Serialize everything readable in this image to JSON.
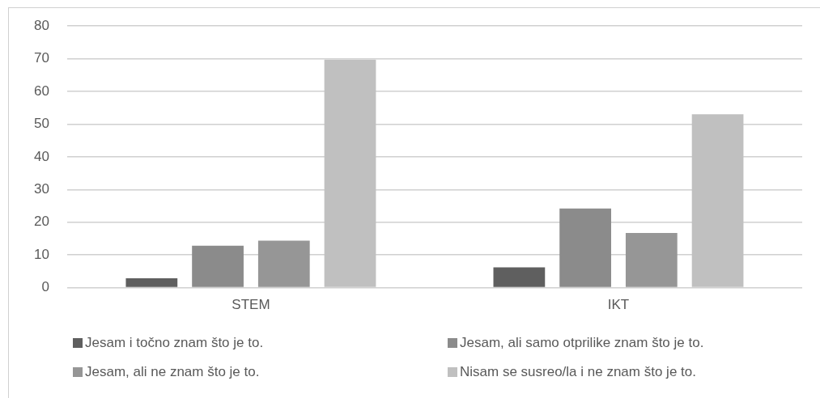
{
  "chart_data": {
    "type": "bar",
    "categories": [
      "STEM",
      "IKT"
    ],
    "series": [
      {
        "name": "Jesam i točno znam što je to.",
        "color": "#5f5f5f",
        "values": [
          2.9,
          6.2
        ]
      },
      {
        "name": "Jesam, ali samo otprilike znam što je to.",
        "color": "#8b8b8b",
        "values": [
          12.8,
          24.2
        ]
      },
      {
        "name": "Jesam, ali ne znam što je to.",
        "color": "#969696",
        "values": [
          14.4,
          16.7
        ]
      },
      {
        "name": "Nisam se susreo/la i ne znam što je to.",
        "color": "#c0c0c0",
        "values": [
          69.7,
          53
        ]
      }
    ],
    "ylim": [
      0,
      80
    ],
    "yticks": [
      0,
      10,
      20,
      30,
      40,
      50,
      60,
      70,
      80
    ],
    "grid": "y",
    "legend": "bottom"
  }
}
